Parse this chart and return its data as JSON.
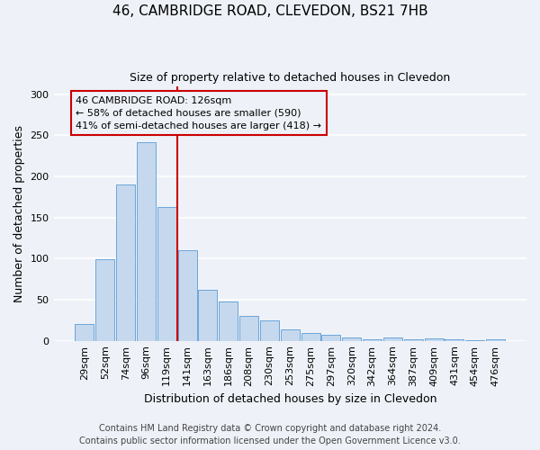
{
  "title": "46, CAMBRIDGE ROAD, CLEVEDON, BS21 7HB",
  "subtitle": "Size of property relative to detached houses in Clevedon",
  "xlabel": "Distribution of detached houses by size in Clevedon",
  "ylabel": "Number of detached properties",
  "bar_labels": [
    "29sqm",
    "52sqm",
    "74sqm",
    "96sqm",
    "119sqm",
    "141sqm",
    "163sqm",
    "186sqm",
    "208sqm",
    "230sqm",
    "253sqm",
    "275sqm",
    "297sqm",
    "320sqm",
    "342sqm",
    "364sqm",
    "387sqm",
    "409sqm",
    "431sqm",
    "454sqm",
    "476sqm"
  ],
  "bar_values": [
    20,
    99,
    190,
    242,
    163,
    110,
    62,
    48,
    30,
    25,
    14,
    10,
    7,
    4,
    2,
    4,
    2,
    3,
    2,
    1,
    2
  ],
  "bar_color": "#c5d8ed",
  "bar_edgecolor": "#5b9bd5",
  "vline_x": 4.5,
  "vline_color": "#cc0000",
  "annotation_title": "46 CAMBRIDGE ROAD: 126sqm",
  "annotation_line1": "← 58% of detached houses are smaller (590)",
  "annotation_line2": "41% of semi-detached houses are larger (418) →",
  "annotation_box_edgecolor": "#cc0000",
  "ylim": [
    0,
    310
  ],
  "yticks": [
    0,
    50,
    100,
    150,
    200,
    250,
    300
  ],
  "footer1": "Contains HM Land Registry data © Crown copyright and database right 2024.",
  "footer2": "Contains public sector information licensed under the Open Government Licence v3.0.",
  "bg_color": "#eef2f8",
  "grid_color": "#ffffff",
  "title_fontsize": 11,
  "subtitle_fontsize": 9,
  "axis_label_fontsize": 9,
  "tick_fontsize": 8,
  "annotation_fontsize": 8,
  "footer_fontsize": 7
}
